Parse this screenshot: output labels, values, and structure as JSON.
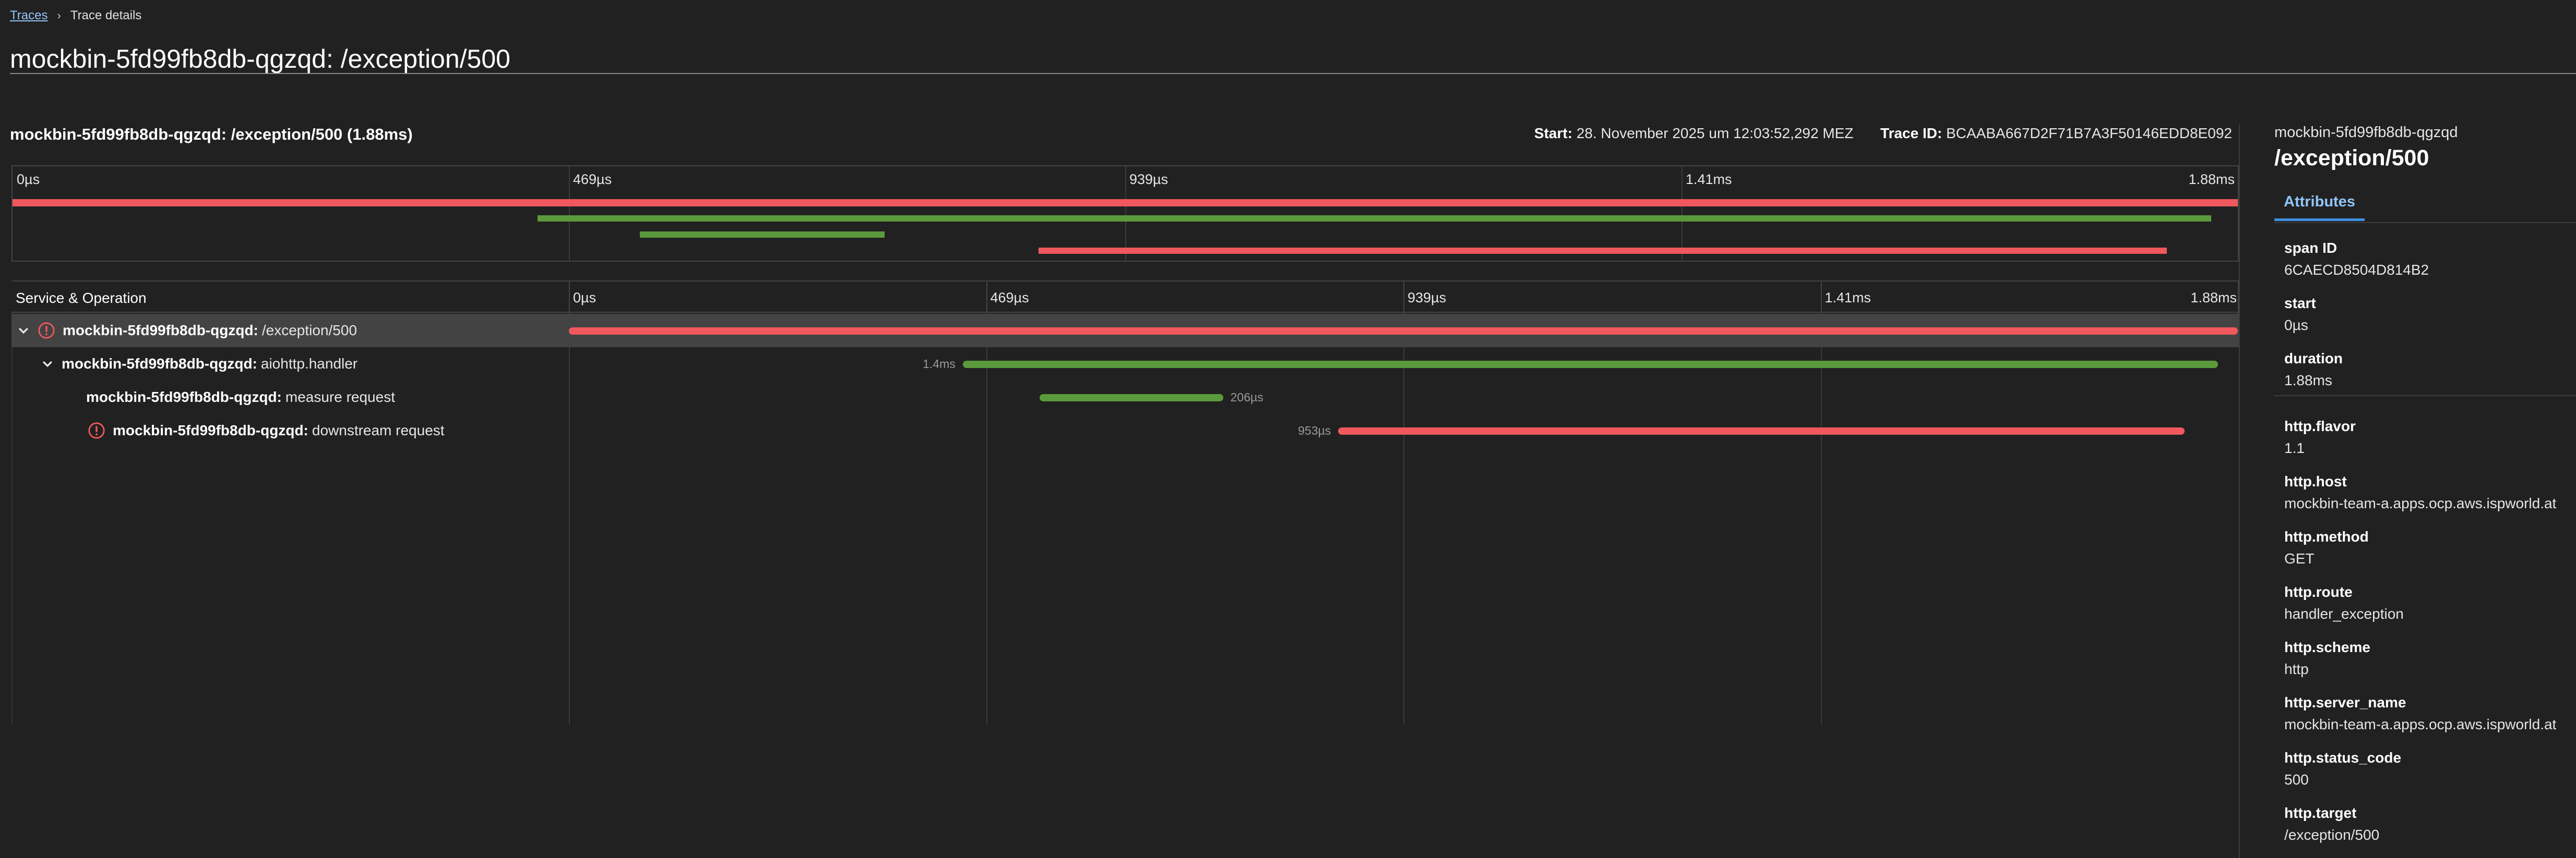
{
  "breadcrumb": {
    "link": "Traces",
    "current": "Trace details"
  },
  "page_title": "mockbin-5fd99fb8db-qgzqd: /exception/500",
  "trace": {
    "heading": "mockbin-5fd99fb8db-qgzqd: /exception/500 (1.88ms)",
    "start_label": "Start:",
    "start_value": "28. November 2025 um 12:03:52,292 MEZ",
    "id_label": "Trace ID:",
    "id_value": "BCAABA667D2F71B7A3F50146EDD8E092"
  },
  "timeline": {
    "ticks": [
      "0µs",
      "469µs",
      "939µs",
      "1.41ms",
      "1.88ms"
    ],
    "column_header": "Service & Operation"
  },
  "spans": [
    {
      "service": "mockbin-5fd99fb8db-qgzqd:",
      "operation": "/exception/500",
      "duration": "",
      "error": true,
      "expanded": true,
      "selected": true,
      "start": 0.0,
      "end": 1.0,
      "color": "#f0585d"
    },
    {
      "service": "mockbin-5fd99fb8db-qgzqd:",
      "operation": "aiohttp.handler",
      "duration": "1.4ms",
      "error": false,
      "expanded": true,
      "selected": false,
      "start": 0.236,
      "end": 0.988,
      "color": "#5a9a3c"
    },
    {
      "service": "mockbin-5fd99fb8db-qgzqd:",
      "operation": "measure request",
      "duration": "206µs",
      "error": false,
      "expanded": false,
      "selected": false,
      "start": 0.282,
      "end": 0.392,
      "color": "#5a9a3c"
    },
    {
      "service": "mockbin-5fd99fb8db-qgzqd:",
      "operation": "downstream request",
      "duration": "953µs",
      "error": true,
      "expanded": false,
      "selected": false,
      "start": 0.461,
      "end": 0.968,
      "color": "#f0585d"
    }
  ],
  "panel": {
    "service": "mockbin-5fd99fb8db-qgzqd",
    "operation": "/exception/500",
    "tab": "Attributes",
    "span_attrs": [
      {
        "key": "span ID",
        "value": "6CAECD8504D814B2"
      },
      {
        "key": "start",
        "value": "0µs"
      },
      {
        "key": "duration",
        "value": "1.88ms"
      }
    ],
    "attributes": [
      {
        "key": "http.flavor",
        "value": "1.1"
      },
      {
        "key": "http.host",
        "value": "mockbin-team-a.apps.ocp.aws.ispworld.at"
      },
      {
        "key": "http.method",
        "value": "GET"
      },
      {
        "key": "http.route",
        "value": "handler_exception"
      },
      {
        "key": "http.scheme",
        "value": "http"
      },
      {
        "key": "http.server_name",
        "value": "mockbin-team-a.apps.ocp.aws.ispworld.at"
      },
      {
        "key": "http.status_code",
        "value": "500"
      },
      {
        "key": "http.target",
        "value": "/exception/500"
      }
    ]
  },
  "colors": {
    "error": "#f0585d",
    "ok": "#5a9a3c",
    "accent": "#92c5f9"
  }
}
